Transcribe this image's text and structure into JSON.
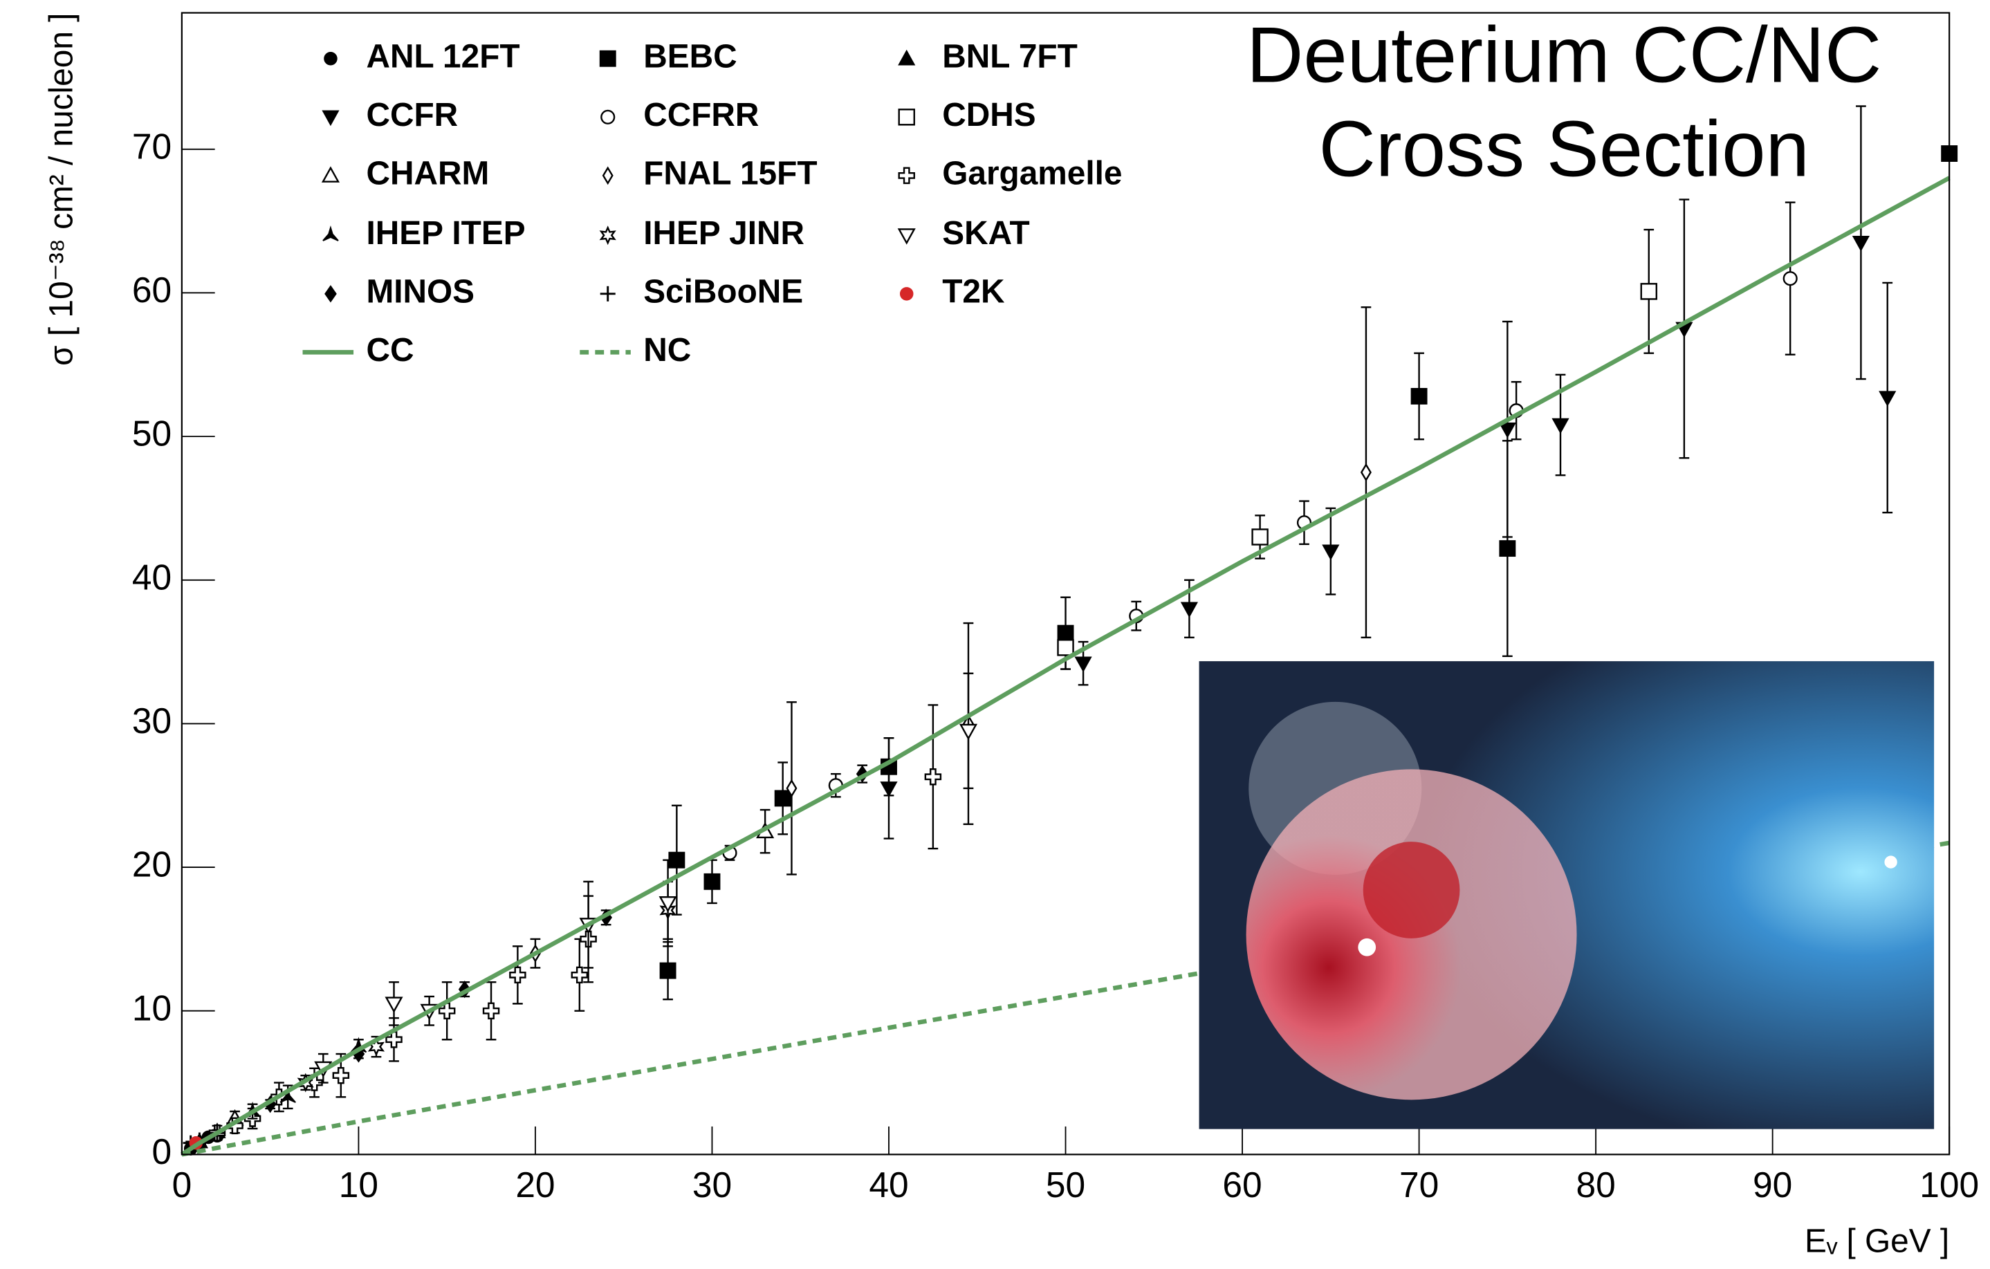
{
  "chart_data": {
    "type": "scatter",
    "title_lines": [
      "Deuterium CC/NC",
      "Cross Section"
    ],
    "x_label": "Eᵥ  [ GeV ]",
    "y_label": "σ  [ 10⁻³⁸ cm² / nucleon ]",
    "xlim": [
      0,
      100
    ],
    "ylim": [
      0,
      79.5
    ],
    "xticks": [
      0,
      10,
      20,
      30,
      40,
      50,
      60,
      70,
      80,
      90,
      100
    ],
    "yticks": [
      0,
      10,
      20,
      30,
      40,
      50,
      60,
      70
    ],
    "series": [
      {
        "name": "ANL 12FT",
        "marker": "circle-filled",
        "color": "#000000",
        "x": [
          0.5,
          1,
          1.5,
          2
        ],
        "values": [
          0.4,
          0.8,
          1.2,
          1.3
        ]
      },
      {
        "name": "BEBC",
        "marker": "square-filled",
        "color": "#000000",
        "x": [
          27.5,
          28,
          30,
          34,
          40,
          50,
          70,
          75,
          100
        ],
        "values": [
          12.8,
          20.5,
          19,
          24.8,
          27,
          36.3,
          52.8,
          42.2,
          69.7
        ],
        "errors": [
          2,
          3.8,
          1.5,
          2.5,
          2,
          2.5,
          3,
          7.5,
          null
        ]
      },
      {
        "name": "BNL 7FT",
        "marker": "triangle-up-filled",
        "color": "#000000",
        "x": [
          1,
          2,
          3
        ],
        "values": [
          0.9,
          1.6,
          2.4
        ]
      },
      {
        "name": "CCFR",
        "marker": "triangle-down-filled",
        "color": "#000000",
        "x": [
          40,
          51,
          57,
          65,
          75,
          78,
          85,
          95,
          96.5
        ],
        "values": [
          25.5,
          34.2,
          38,
          42,
          50.5,
          50.8,
          57.5,
          63.5,
          52.7
        ],
        "errors": [
          3.5,
          1.5,
          2,
          3,
          7.5,
          3.5,
          9,
          9.5,
          8
        ]
      },
      {
        "name": "CCFRR",
        "marker": "circle-open",
        "color": "#000000",
        "x": [
          31,
          37,
          54,
          63.5,
          75.5,
          91
        ],
        "values": [
          21,
          25.7,
          37.5,
          44,
          51.8,
          61
        ],
        "errors": [
          0.5,
          0.8,
          1,
          1.5,
          2,
          5.3
        ]
      },
      {
        "name": "CDHS",
        "marker": "square-open",
        "color": "#000000",
        "x": [
          50,
          61,
          83
        ],
        "values": [
          35.3,
          43,
          60.1
        ],
        "errors": [
          1.5,
          1.5,
          4.3
        ]
      },
      {
        "name": "CHARM",
        "marker": "triangle-up-open",
        "color": "#000000",
        "x": [
          3,
          33
        ],
        "values": [
          2.5,
          22.5
        ],
        "errors": [
          0.5,
          1.5
        ]
      },
      {
        "name": "FNAL 15FT",
        "marker": "diamond-open",
        "color": "#000000",
        "x": [
          20,
          34.5,
          44.5,
          67
        ],
        "values": [
          14,
          25.5,
          30,
          47.5
        ],
        "errors": [
          1,
          6,
          7,
          11.5
        ]
      },
      {
        "name": "Gargamelle",
        "marker": "cross-open",
        "color": "#000000",
        "x": [
          2,
          3,
          4,
          5.5,
          7.5,
          9,
          12,
          15,
          17.5,
          19,
          22.5,
          23,
          42.5
        ],
        "values": [
          1.5,
          2,
          2.5,
          4,
          5,
          5.5,
          8,
          10,
          10,
          12.5,
          12.5,
          15,
          26.3
        ],
        "errors": [
          0.5,
          0.5,
          0.7,
          1,
          1,
          1.5,
          1.5,
          2,
          2,
          2,
          2.5,
          3,
          5
        ]
      },
      {
        "name": "IHEP ITEP",
        "marker": "star3",
        "color": "#000000",
        "x": [
          4,
          6,
          10
        ],
        "values": [
          3,
          4,
          7.5
        ],
        "errors": [
          0.5,
          0.8,
          0.5
        ]
      },
      {
        "name": "IHEP JINR",
        "marker": "star-open",
        "color": "#000000",
        "x": [
          7,
          11,
          27.5
        ],
        "values": [
          5,
          7.5,
          17
        ],
        "errors": [
          0.5,
          0.7,
          2
        ]
      },
      {
        "name": "SKAT",
        "marker": "triangle-down-open",
        "color": "#000000",
        "x": [
          8,
          12,
          14,
          23,
          27.5,
          44.5
        ],
        "values": [
          6,
          10.5,
          10,
          16,
          17.5,
          29.5
        ],
        "errors": [
          1,
          1.5,
          1,
          3,
          3,
          4
        ]
      },
      {
        "name": "MINOS",
        "marker": "diamond-filled",
        "color": "#000000",
        "x": [
          5,
          10,
          16,
          24,
          38.5
        ],
        "values": [
          3.5,
          7,
          11.5,
          16.5,
          26.5
        ],
        "errors": [
          0.3,
          0.3,
          0.5,
          0.5,
          0.6
        ]
      },
      {
        "name": "SciBooNE",
        "marker": "plus",
        "color": "#000000",
        "x": [
          0.5,
          1,
          2
        ],
        "values": [
          0.8,
          1,
          1.5
        ],
        "errors": [
          0.1,
          0.2,
          0.2
        ]
      },
      {
        "name": "T2K",
        "marker": "circle-filled",
        "color": "#d62728",
        "x": [
          0.8
        ],
        "values": [
          0.8
        ]
      },
      {
        "name": "CC",
        "marker": "line",
        "dash": "solid",
        "color": "#5e9e5e",
        "x": [
          0,
          1,
          2,
          5,
          10,
          20,
          30,
          40,
          50,
          60,
          70,
          80,
          90,
          100
        ],
        "values": [
          0,
          0.8,
          1.5,
          3.7,
          7.3,
          14,
          20.7,
          27.3,
          34.5,
          41.3,
          47.8,
          54.5,
          61.3,
          68
        ]
      },
      {
        "name": "NC",
        "marker": "line",
        "dash": "dashed",
        "color": "#5e9e5e",
        "x": [
          0,
          10,
          50,
          100
        ],
        "values": [
          0,
          2.3,
          11,
          21.7
        ]
      }
    ]
  }
}
